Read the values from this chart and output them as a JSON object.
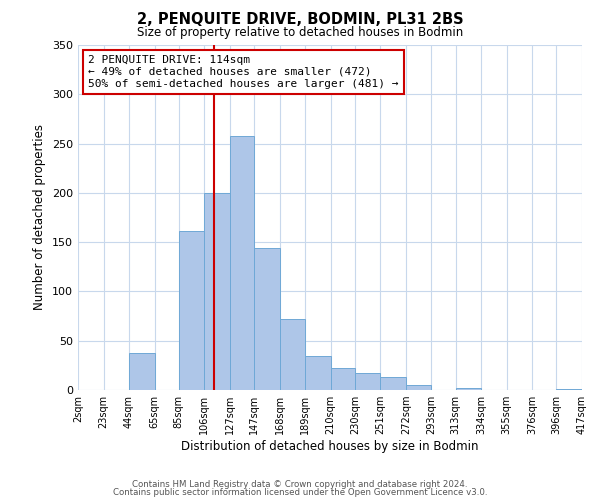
{
  "title": "2, PENQUITE DRIVE, BODMIN, PL31 2BS",
  "subtitle": "Size of property relative to detached houses in Bodmin",
  "xlabel": "Distribution of detached houses by size in Bodmin",
  "ylabel": "Number of detached properties",
  "footer_lines": [
    "Contains HM Land Registry data © Crown copyright and database right 2024.",
    "Contains public sector information licensed under the Open Government Licence v3.0."
  ],
  "bin_labels": [
    "2sqm",
    "23sqm",
    "44sqm",
    "65sqm",
    "85sqm",
    "106sqm",
    "127sqm",
    "147sqm",
    "168sqm",
    "189sqm",
    "210sqm",
    "230sqm",
    "251sqm",
    "272sqm",
    "293sqm",
    "313sqm",
    "334sqm",
    "355sqm",
    "376sqm",
    "396sqm",
    "417sqm"
  ],
  "bin_edges": [
    2,
    23,
    44,
    65,
    85,
    106,
    127,
    147,
    168,
    189,
    210,
    230,
    251,
    272,
    293,
    313,
    334,
    355,
    376,
    396,
    417
  ],
  "bar_heights": [
    0,
    0,
    38,
    0,
    161,
    200,
    258,
    144,
    72,
    34,
    22,
    17,
    13,
    5,
    0,
    2,
    0,
    0,
    0,
    1
  ],
  "bar_color": "#aec6e8",
  "bar_edgecolor": "#6fa8d6",
  "vline_x": 114,
  "vline_color": "#cc0000",
  "ylim": [
    0,
    350
  ],
  "yticks": [
    0,
    50,
    100,
    150,
    200,
    250,
    300,
    350
  ],
  "annotation_text": "2 PENQUITE DRIVE: 114sqm\n← 49% of detached houses are smaller (472)\n50% of semi-detached houses are larger (481) →",
  "annotation_box_edgecolor": "#cc0000",
  "background_color": "#ffffff",
  "grid_color": "#c8d8ec"
}
